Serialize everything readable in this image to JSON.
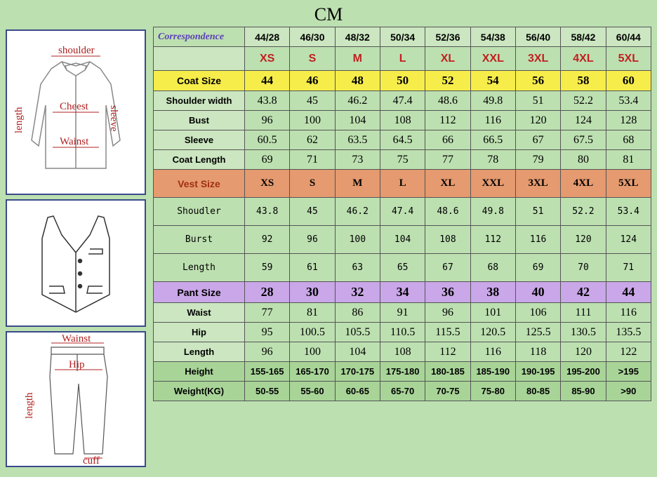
{
  "title": "CM",
  "columns": [
    "44/28",
    "46/30",
    "48/32",
    "50/34",
    "52/36",
    "54/38",
    "56/40",
    "58/42",
    "60/44"
  ],
  "corr_label": "Correspondence",
  "sizes": [
    "XS",
    "S",
    "M",
    "L",
    "XL",
    "XXL",
    "3XL",
    "4XL",
    "5XL"
  ],
  "coat": {
    "size_label": "Coat Size",
    "size": [
      "44",
      "46",
      "48",
      "50",
      "52",
      "54",
      "56",
      "58",
      "60"
    ],
    "rows": [
      {
        "label": "Shoulder width",
        "v": [
          "43.8",
          "45",
          "46.2",
          "47.4",
          "48.6",
          "49.8",
          "51",
          "52.2",
          "53.4"
        ]
      },
      {
        "label": "Bust",
        "v": [
          "96",
          "100",
          "104",
          "108",
          "112",
          "116",
          "120",
          "124",
          "128"
        ]
      },
      {
        "label": "Sleeve",
        "v": [
          "60.5",
          "62",
          "63.5",
          "64.5",
          "66",
          "66.5",
          "67",
          "67.5",
          "68"
        ]
      },
      {
        "label": "Coat Length",
        "v": [
          "69",
          "71",
          "73",
          "75",
          "77",
          "78",
          "79",
          "80",
          "81"
        ]
      }
    ]
  },
  "vest": {
    "size_label": "Vest Size",
    "size": [
      "XS",
      "S",
      "M",
      "L",
      "XL",
      "XXL",
      "3XL",
      "4XL",
      "5XL"
    ],
    "rows": [
      {
        "label": "Shoudler",
        "v": [
          "43.8",
          "45",
          "46.2",
          "47.4",
          "48.6",
          "49.8",
          "51",
          "52.2",
          "53.4"
        ]
      },
      {
        "label": "Burst",
        "v": [
          "92",
          "96",
          "100",
          "104",
          "108",
          "112",
          "116",
          "120",
          "124"
        ]
      },
      {
        "label": "Length",
        "v": [
          "59",
          "61",
          "63",
          "65",
          "67",
          "68",
          "69",
          "70",
          "71"
        ]
      }
    ]
  },
  "pant": {
    "size_label": "Pant Size",
    "size": [
      "28",
      "30",
      "32",
      "34",
      "36",
      "38",
      "40",
      "42",
      "44"
    ],
    "rows": [
      {
        "label": "Waist",
        "v": [
          "77",
          "81",
          "86",
          "91",
          "96",
          "101",
          "106",
          "111",
          "116"
        ]
      },
      {
        "label": "Hip",
        "v": [
          "95",
          "100.5",
          "105.5",
          "110.5",
          "115.5",
          "120.5",
          "125.5",
          "130.5",
          "135.5"
        ]
      },
      {
        "label": "Length",
        "v": [
          "96",
          "100",
          "104",
          "108",
          "112",
          "116",
          "118",
          "120",
          "122"
        ]
      }
    ]
  },
  "height": {
    "label": "Height",
    "v": [
      "155-165",
      "165-170",
      "170-175",
      "175-180",
      "180-185",
      "185-190",
      "190-195",
      "195-200",
      ">195"
    ]
  },
  "weight": {
    "label": "Weight(KG)",
    "v": [
      "50-55",
      "55-60",
      "60-65",
      "65-70",
      "70-75",
      "75-80",
      "80-85",
      "85-90",
      ">90"
    ]
  },
  "diagram_labels": {
    "shoulder": "shoulder",
    "length": "length",
    "sleeve": "sleeve",
    "chest": "Cheest",
    "waist": "Wainst",
    "cuff": "cuff",
    "hip": "Hip"
  },
  "colors": {
    "bg": "#bde0b1",
    "yellow": "#f7ed4a",
    "orange": "#e59a6f",
    "purple": "#c9a7e8",
    "green2": "#a8d498",
    "red_text": "#c02020"
  }
}
